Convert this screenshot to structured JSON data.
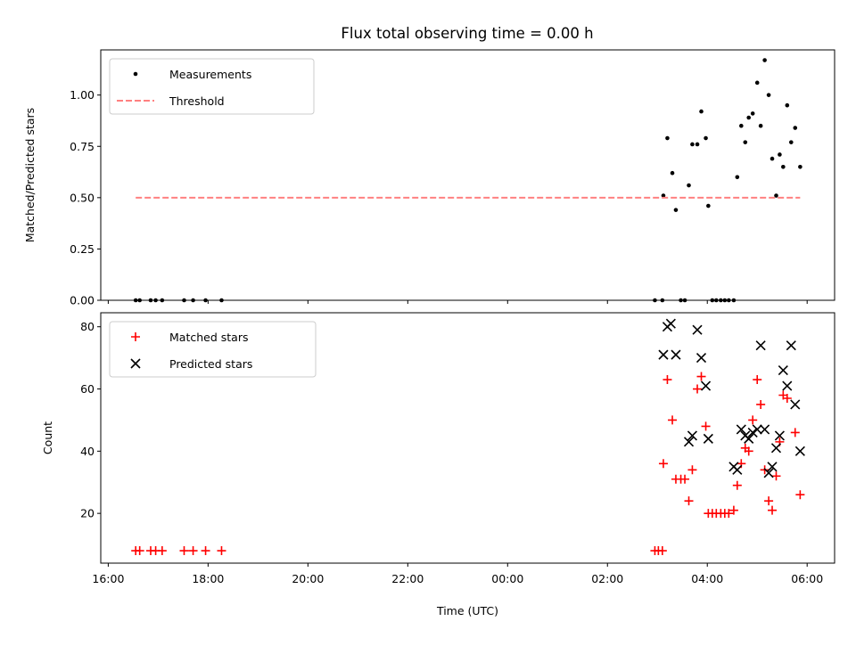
{
  "figure": {
    "title": "Flux total observing time = 0.00 h"
  },
  "colors": {
    "measurement": "#000000",
    "threshold": "#ff8080",
    "matched": "#ff0000",
    "predicted": "#000000"
  },
  "chart_data": [
    {
      "type": "scatter",
      "panel": "top",
      "title": "Flux total observing time = 0.00 h",
      "xlabel": "",
      "ylabel": "Matched/Predicted stars",
      "x_unit": "hours since 16:00 UTC",
      "xlim": [
        -0.15,
        14.55
      ],
      "ylim": [
        0.0,
        1.22
      ],
      "yticks": [
        0.0,
        0.25,
        0.5,
        0.75,
        1.0
      ],
      "ytick_labels": [
        "0.00",
        "0.25",
        "0.50",
        "0.75",
        "1.00"
      ],
      "grid": false,
      "legend": {
        "position": "top-left",
        "entries": [
          "Measurements",
          "Threshold"
        ]
      },
      "series": [
        {
          "name": "Measurements",
          "marker": "dot",
          "points": [
            [
              0.55,
              0.0
            ],
            [
              0.63,
              0.0
            ],
            [
              0.85,
              0.0
            ],
            [
              0.95,
              0.0
            ],
            [
              1.08,
              0.0
            ],
            [
              1.52,
              0.0
            ],
            [
              1.7,
              0.0
            ],
            [
              1.95,
              0.0
            ],
            [
              2.27,
              0.0
            ],
            [
              10.95,
              0.0
            ],
            [
              11.1,
              0.0
            ],
            [
              11.47,
              0.0
            ],
            [
              11.55,
              0.0
            ],
            [
              12.1,
              0.0
            ],
            [
              12.18,
              0.0
            ],
            [
              12.27,
              0.0
            ],
            [
              12.35,
              0.0
            ],
            [
              12.43,
              0.0
            ],
            [
              12.53,
              0.0
            ],
            [
              11.12,
              0.51
            ],
            [
              11.2,
              0.79
            ],
            [
              11.3,
              0.62
            ],
            [
              11.37,
              0.44
            ],
            [
              11.63,
              0.56
            ],
            [
              11.7,
              0.76
            ],
            [
              11.8,
              0.76
            ],
            [
              11.88,
              0.92
            ],
            [
              11.97,
              0.79
            ],
            [
              12.02,
              0.46
            ],
            [
              12.6,
              0.6
            ],
            [
              12.68,
              0.85
            ],
            [
              12.76,
              0.77
            ],
            [
              12.83,
              0.89
            ],
            [
              12.91,
              0.91
            ],
            [
              13.0,
              1.06
            ],
            [
              13.07,
              0.85
            ],
            [
              13.15,
              1.17
            ],
            [
              13.23,
              1.0
            ],
            [
              13.3,
              0.69
            ],
            [
              13.38,
              0.51
            ],
            [
              13.45,
              0.71
            ],
            [
              13.52,
              0.65
            ],
            [
              13.6,
              0.95
            ],
            [
              13.68,
              0.77
            ],
            [
              13.76,
              0.84
            ],
            [
              13.86,
              0.65
            ]
          ]
        },
        {
          "name": "Threshold",
          "marker": "dashed-line",
          "points": [
            [
              0.55,
              0.5
            ],
            [
              13.86,
              0.5
            ]
          ]
        }
      ]
    },
    {
      "type": "scatter",
      "panel": "bottom",
      "title": "",
      "xlabel": "Time (UTC)",
      "ylabel": "Count",
      "x_unit": "hours since 16:00 UTC",
      "xlim": [
        -0.15,
        14.55
      ],
      "ylim": [
        4.0,
        84.5
      ],
      "yticks": [
        20,
        40,
        60,
        80
      ],
      "ytick_labels": [
        "20",
        "40",
        "60",
        "80"
      ],
      "xticks": [
        0,
        2,
        4,
        6,
        8,
        10,
        12,
        14
      ],
      "xtick_labels": [
        "16:00",
        "18:00",
        "20:00",
        "22:00",
        "00:00",
        "02:00",
        "04:00",
        "06:00"
      ],
      "grid": false,
      "legend": {
        "position": "top-left",
        "entries": [
          "Matched stars",
          "Predicted stars"
        ]
      },
      "series": [
        {
          "name": "Matched stars",
          "marker": "plus",
          "points": [
            [
              0.55,
              8
            ],
            [
              0.63,
              8
            ],
            [
              0.85,
              8
            ],
            [
              0.95,
              8
            ],
            [
              1.08,
              8
            ],
            [
              1.52,
              8
            ],
            [
              1.7,
              8
            ],
            [
              1.95,
              8
            ],
            [
              2.27,
              8
            ],
            [
              10.95,
              8
            ],
            [
              11.02,
              8
            ],
            [
              11.1,
              8
            ],
            [
              11.12,
              36
            ],
            [
              11.2,
              63
            ],
            [
              11.3,
              50
            ],
            [
              11.37,
              31
            ],
            [
              11.47,
              31
            ],
            [
              11.55,
              31
            ],
            [
              11.63,
              24
            ],
            [
              11.7,
              34
            ],
            [
              11.8,
              60
            ],
            [
              11.88,
              64
            ],
            [
              11.97,
              48
            ],
            [
              12.02,
              20
            ],
            [
              12.1,
              20
            ],
            [
              12.18,
              20
            ],
            [
              12.27,
              20
            ],
            [
              12.35,
              20
            ],
            [
              12.43,
              20
            ],
            [
              12.53,
              21
            ],
            [
              12.6,
              29
            ],
            [
              12.68,
              36
            ],
            [
              12.76,
              41
            ],
            [
              12.83,
              40
            ],
            [
              12.91,
              50
            ],
            [
              13.0,
              63
            ],
            [
              13.07,
              55
            ],
            [
              13.15,
              34
            ],
            [
              13.23,
              24
            ],
            [
              13.3,
              21
            ],
            [
              13.38,
              32
            ],
            [
              13.45,
              43
            ],
            [
              13.52,
              58
            ],
            [
              13.6,
              57
            ],
            [
              13.76,
              46
            ],
            [
              13.86,
              26
            ]
          ]
        },
        {
          "name": "Predicted stars",
          "marker": "x",
          "points": [
            [
              11.12,
              71
            ],
            [
              11.2,
              80
            ],
            [
              11.27,
              81
            ],
            [
              11.37,
              71
            ],
            [
              11.63,
              43
            ],
            [
              11.7,
              45
            ],
            [
              11.8,
              79
            ],
            [
              11.88,
              70
            ],
            [
              11.97,
              61
            ],
            [
              12.02,
              44
            ],
            [
              12.53,
              35
            ],
            [
              12.6,
              34
            ],
            [
              12.68,
              47
            ],
            [
              12.76,
              45
            ],
            [
              12.83,
              44
            ],
            [
              12.91,
              46
            ],
            [
              13.0,
              47
            ],
            [
              13.07,
              74
            ],
            [
              13.15,
              47
            ],
            [
              13.23,
              33
            ],
            [
              13.3,
              35
            ],
            [
              13.38,
              41
            ],
            [
              13.45,
              45
            ],
            [
              13.52,
              66
            ],
            [
              13.6,
              61
            ],
            [
              13.68,
              74
            ],
            [
              13.76,
              55
            ],
            [
              13.86,
              40
            ]
          ]
        }
      ]
    }
  ]
}
